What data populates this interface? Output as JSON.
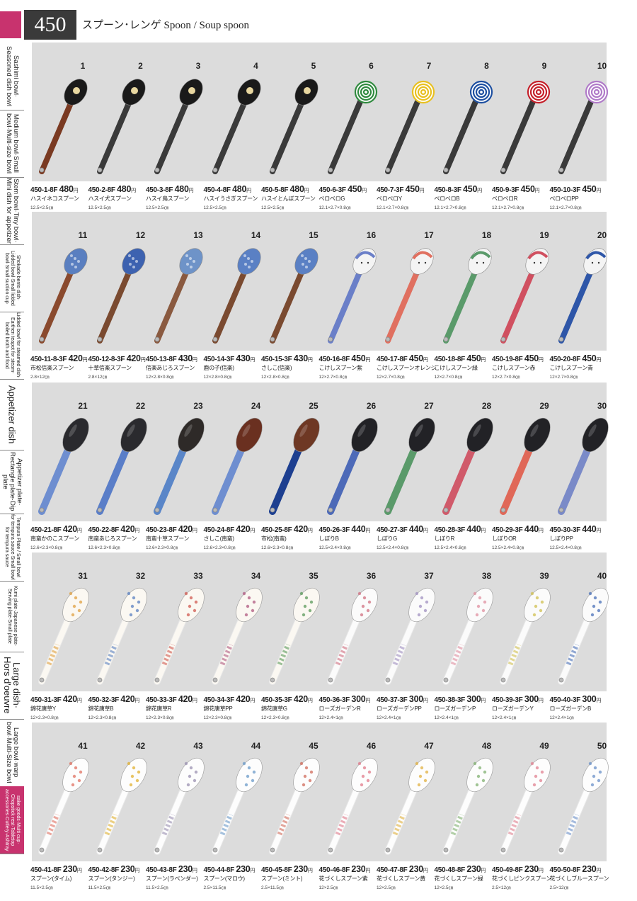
{
  "header": {
    "page_number": "450",
    "title": "スプーン･レンゲ Spoon / Soup spoon"
  },
  "sidebar": [
    {
      "label": "Sashimi bowl·\nSeasoned dish bowl",
      "size": "norm"
    },
    {
      "label": "Medium bowl·Small\nbowl·Multi-size bowl",
      "size": "norm"
    },
    {
      "label": "Stem bowl·Tiny bowl·\nMini dish for appetizer",
      "size": "norm"
    },
    {
      "label": "Shokado bento dish·\nLidded bowl·Small lidded\nbowl·Small suction cup",
      "size": "small"
    },
    {
      "label": "Lidded bowl for steamed dish·\nEarthen teapot for steam-\nboiled broth and food",
      "size": "small"
    },
    {
      "label": "Appetizer dish",
      "size": "big"
    },
    {
      "label": "Appetizer plate·\nRectangle plate·Dip plate",
      "size": "norm"
    },
    {
      "label": "Tempura Plate / Small bowl\nfor tempura sauce·Small bowl\nfor tempura sauce",
      "size": "small"
    },
    {
      "label": "Kumi plate·Japanese plate·\nServing plate·Small plate",
      "size": "small"
    },
    {
      "label": "Large dish·\nHors d'oeuvre",
      "size": "big"
    },
    {
      "label": "Large bowl·warp\nbowl·Multi-Size bowl",
      "size": "norm"
    },
    {
      "label": "sake goods·Multi cup·\nChopstick rest·Tabletop\naccessories·Cutlery·Ashtray",
      "size": "active"
    }
  ],
  "items": [
    {
      "n": "1",
      "code": "450-1-8F",
      "price": "480",
      "name": "ハスイネコスプーン",
      "size": "12.5×2.5㎝",
      "bowl": "#1a1a1a",
      "handle": "#7a3a22",
      "pattern": "cat"
    },
    {
      "n": "2",
      "code": "450-2-8F",
      "price": "480",
      "name": "ハスイ犬スプーン",
      "size": "12.5×2.5㎝",
      "bowl": "#1a1a1a",
      "handle": "#3a3a3a",
      "pattern": "dog"
    },
    {
      "n": "3",
      "code": "450-3-8F",
      "price": "480",
      "name": "ハスイ鳥スプーン",
      "size": "12.5×2.5㎝",
      "bowl": "#1a1a1a",
      "handle": "#3a3a3a",
      "pattern": "bird"
    },
    {
      "n": "4",
      "code": "450-4-8F",
      "price": "480",
      "name": "ハスイうさぎスプーン",
      "size": "12.5×2.5㎝",
      "bowl": "#1a1a1a",
      "handle": "#3a3a3a",
      "pattern": "rabbit"
    },
    {
      "n": "5",
      "code": "450-5-8F",
      "price": "480",
      "name": "ハスイとんぼスプーン",
      "size": "12.5×2.5㎝",
      "bowl": "#1a1a1a",
      "handle": "#3a3a3a",
      "pattern": "dragonfly"
    },
    {
      "n": "6",
      "code": "450-6-3F",
      "price": "450",
      "name": "ベロベロG",
      "size": "12.1×2.7×0.8㎝",
      "bowl": "#2f8a3e",
      "handle": "#3a3a3a",
      "pattern": "swirl"
    },
    {
      "n": "7",
      "code": "450-7-3F",
      "price": "450",
      "name": "ベロベロY",
      "size": "12.1×2.7×0.8㎝",
      "bowl": "#e8c020",
      "handle": "#3a3a3a",
      "pattern": "swirl"
    },
    {
      "n": "8",
      "code": "450-8-3F",
      "price": "450",
      "name": "ベロベロB",
      "size": "12.1×2.7×0.8㎝",
      "bowl": "#1d4fa0",
      "handle": "#3a3a3a",
      "pattern": "swirl"
    },
    {
      "n": "9",
      "code": "450-9-3F",
      "price": "450",
      "name": "ベロベロR",
      "size": "12.1×2.7×0.8㎝",
      "bowl": "#c4202a",
      "handle": "#3a3a3a",
      "pattern": "swirl"
    },
    {
      "n": "10",
      "code": "450-10-3F",
      "price": "450",
      "name": "ベロベロPP",
      "size": "12.1×2.7×0.8㎝",
      "bowl": "#b07ac8",
      "handle": "#3a3a3a",
      "pattern": "swirl"
    },
    {
      "n": "11",
      "code": "450-11-8-3F",
      "price": "420",
      "name": "市松信楽スプーン",
      "size": "2.8×12㎝",
      "bowl": "#5a7fc0",
      "handle": "#8a4a2e",
      "pattern": "check"
    },
    {
      "n": "12",
      "code": "450-12-8-3F",
      "price": "420",
      "name": "十草信楽スプーン",
      "size": "2.8×12㎝",
      "bowl": "#3d62b0",
      "handle": "#7a4a30",
      "pattern": "stripe"
    },
    {
      "n": "13",
      "code": "450-13-8F",
      "price": "430",
      "name": "信楽あじろスプーン",
      "size": "12×2.8×0.8㎝",
      "bowl": "#6e93c8",
      "handle": "#8a5a40",
      "pattern": "check"
    },
    {
      "n": "14",
      "code": "450-14-3F",
      "price": "430",
      "name": "鹿の子(信楽)",
      "size": "12×2.8×0.8㎝",
      "bowl": "#5a80c4",
      "handle": "#7a4a30",
      "pattern": "dots"
    },
    {
      "n": "15",
      "code": "450-15-3F",
      "price": "430",
      "name": "さしこ(信楽)",
      "size": "12×2.8×0.8㎝",
      "bowl": "#5a80c4",
      "handle": "#7a4a30",
      "pattern": "dots"
    },
    {
      "n": "16",
      "code": "450-16-8F",
      "price": "450",
      "name": "こけしスプーン紫",
      "size": "12×2.7×0.8㎝",
      "bowl": "#f4f4f4",
      "handle": "#6a7fc8",
      "pattern": "kokeshi"
    },
    {
      "n": "17",
      "code": "450-17-8F",
      "price": "450",
      "name": "こけしスプーンオレンジ",
      "size": "12×2.7×0.8㎝",
      "bowl": "#f4f4f4",
      "handle": "#e07060",
      "pattern": "kokeshi"
    },
    {
      "n": "18",
      "code": "450-18-8F",
      "price": "450",
      "name": "こけしスプーン緑",
      "size": "12×2.7×0.8㎝",
      "bowl": "#f4f4f4",
      "handle": "#5a9a6a",
      "pattern": "kokeshi"
    },
    {
      "n": "19",
      "code": "450-19-8F",
      "price": "450",
      "name": "こけしスプーン赤",
      "size": "12×2.7×0.8㎝",
      "bowl": "#f4f4f4",
      "handle": "#d05060",
      "pattern": "kokeshi"
    },
    {
      "n": "20",
      "code": "450-20-8F",
      "price": "450",
      "name": "こけしスプーン青",
      "size": "12×2.7×0.8㎝",
      "bowl": "#f4f4f4",
      "handle": "#2e56a8",
      "pattern": "kokeshi"
    },
    {
      "n": "21",
      "code": "450-21-8F",
      "price": "420",
      "name": "南蛮かのこスプーン",
      "size": "12.6×2.3×0.8㎝",
      "bowl": "#2a2a2e",
      "handle": "#6e8ed0",
      "pattern": "plain"
    },
    {
      "n": "22",
      "code": "450-22-8F",
      "price": "420",
      "name": "南蛮あじろスプーン",
      "size": "12.6×2.3×0.8㎝",
      "bowl": "#2a2a2e",
      "handle": "#5a7ec8",
      "pattern": "plain"
    },
    {
      "n": "23",
      "code": "450-23-8F",
      "price": "420",
      "name": "南蛮十草スプーン",
      "size": "12.6×2.3×0.8㎝",
      "bowl": "#2e2a28",
      "handle": "#5a86c8",
      "pattern": "plain"
    },
    {
      "n": "24",
      "code": "450-24-8F",
      "price": "420",
      "name": "さしこ(南蛮)",
      "size": "12.6×2.3×0.8㎝",
      "bowl": "#6a3020",
      "handle": "#6e8ed0",
      "pattern": "plain"
    },
    {
      "n": "25",
      "code": "450-25-8F",
      "price": "420",
      "name": "市松(南蛮)",
      "size": "12.6×2.3×0.8㎝",
      "bowl": "#6e3824",
      "handle": "#1d3f90",
      "pattern": "plain"
    },
    {
      "n": "26",
      "code": "450-26-3F",
      "price": "440",
      "name": "しぼりB",
      "size": "12.5×2.4×0.8㎝",
      "bowl": "#222226",
      "handle": "#4d6ab8",
      "pattern": "plain"
    },
    {
      "n": "27",
      "code": "450-27-3F",
      "price": "440",
      "name": "しぼりG",
      "size": "12.5×2.4×0.8㎝",
      "bowl": "#222226",
      "handle": "#5a9a6a",
      "pattern": "plain"
    },
    {
      "n": "28",
      "code": "450-28-3F",
      "price": "440",
      "name": "しぼりR",
      "size": "12.5×2.4×0.8㎝",
      "bowl": "#222226",
      "handle": "#d05a6a",
      "pattern": "plain"
    },
    {
      "n": "29",
      "code": "450-29-3F",
      "price": "440",
      "name": "しぼりOR",
      "size": "12.5×2.4×0.8㎝",
      "bowl": "#222226",
      "handle": "#e06858",
      "pattern": "plain"
    },
    {
      "n": "30",
      "code": "450-30-3F",
      "price": "440",
      "name": "しぼりPP",
      "size": "12.5×2.4×0.8㎝",
      "bowl": "#222226",
      "handle": "#7a8ac8",
      "pattern": "plain"
    },
    {
      "n": "31",
      "code": "450-31-3F",
      "price": "420",
      "name": "錦花唐草Y",
      "size": "12×2.3×0.8㎝",
      "bowl": "#fbf8f2",
      "handle": "#fbf8f2",
      "accent": "#e0a040",
      "pattern": "floral"
    },
    {
      "n": "32",
      "code": "450-32-3F",
      "price": "420",
      "name": "錦花唐草B",
      "size": "12×2.3×0.8㎝",
      "bowl": "#fbf8f2",
      "handle": "#fbf8f2",
      "accent": "#5a80c0",
      "pattern": "floral"
    },
    {
      "n": "33",
      "code": "450-33-3F",
      "price": "420",
      "name": "錦花唐草R",
      "size": "12×2.3×0.8㎝",
      "bowl": "#fbf8f2",
      "handle": "#fbf8f2",
      "accent": "#d05a50",
      "pattern": "floral"
    },
    {
      "n": "34",
      "code": "450-34-3F",
      "price": "420",
      "name": "錦花唐草PP",
      "size": "12×2.3×0.8㎝",
      "bowl": "#fbf8f2",
      "handle": "#fbf8f2",
      "accent": "#b05a80",
      "pattern": "floral"
    },
    {
      "n": "35",
      "code": "450-35-3F",
      "price": "420",
      "name": "錦花唐草G",
      "size": "12×2.3×0.8㎝",
      "bowl": "#fbf8f2",
      "handle": "#fbf8f2",
      "accent": "#5a9a5a",
      "pattern": "floral"
    },
    {
      "n": "36",
      "code": "450-36-3F",
      "price": "300",
      "name": "ローズガーデンR",
      "size": "12×2.4×1㎝",
      "bowl": "#fbfbfb",
      "handle": "#fbfbfb",
      "accent": "#d07080",
      "pattern": "sprinkle"
    },
    {
      "n": "37",
      "code": "450-37-3F",
      "price": "300",
      "name": "ローズガーデンPP",
      "size": "12×2.4×1㎝",
      "bowl": "#fbfbfb",
      "handle": "#fbfbfb",
      "accent": "#a090c0",
      "pattern": "sprinkle"
    },
    {
      "n": "38",
      "code": "450-38-3F",
      "price": "300",
      "name": "ローズガーデンP",
      "size": "12×2.4×1㎝",
      "bowl": "#fbfbfb",
      "handle": "#fbfbfb",
      "accent": "#e090a0",
      "pattern": "sprinkle"
    },
    {
      "n": "39",
      "code": "450-39-3F",
      "price": "300",
      "name": "ローズガーデンY",
      "size": "12×2.4×1㎝",
      "bowl": "#fbfbfb",
      "handle": "#fbfbfb",
      "accent": "#d0c050",
      "pattern": "sprinkle"
    },
    {
      "n": "40",
      "code": "450-40-3F",
      "price": "300",
      "name": "ローズガーデンB",
      "size": "12×2.4×1㎝",
      "bowl": "#fbfbfb",
      "handle": "#fbfbfb",
      "accent": "#4a70b8",
      "pattern": "sprinkle"
    },
    {
      "n": "41",
      "code": "450-41-8F",
      "price": "230",
      "name": "スプーン(タイム)",
      "size": "11.5×2.5㎝",
      "bowl": "#fdfdfd",
      "handle": "#fdfdfd",
      "accent": "#e07060",
      "pattern": "flower"
    },
    {
      "n": "42",
      "code": "450-42-8F",
      "price": "230",
      "name": "スプーン(タンジー)",
      "size": "11.5×2.5㎝",
      "bowl": "#fdfdfd",
      "handle": "#fdfdfd",
      "accent": "#e0b030",
      "pattern": "flower"
    },
    {
      "n": "43",
      "code": "450-43-8F",
      "price": "230",
      "name": "スプーン(ラベンダー)",
      "size": "11.5×2.5㎝",
      "bowl": "#fdfdfd",
      "handle": "#fdfdfd",
      "accent": "#9a90b0",
      "pattern": "flower"
    },
    {
      "n": "44",
      "code": "450-44-8F",
      "price": "230",
      "name": "スプーン(マロウ)",
      "size": "2.5×11.5㎝",
      "bowl": "#fdfdfd",
      "handle": "#fdfdfd",
      "accent": "#6a9ac8",
      "pattern": "flower"
    },
    {
      "n": "45",
      "code": "450-45-8F",
      "price": "230",
      "name": "スプーン(ミント)",
      "size": "2.5×11.5㎝",
      "bowl": "#fdfdfd",
      "handle": "#fdfdfd",
      "accent": "#d06a5a",
      "pattern": "flower"
    },
    {
      "n": "46",
      "code": "450-46-8F",
      "price": "230",
      "name": "花づくしスプーン紫",
      "size": "12×2.5㎝",
      "bowl": "#fdfdfd",
      "handle": "#fdfdfd",
      "accent": "#e07a8a",
      "pattern": "band"
    },
    {
      "n": "47",
      "code": "450-47-8F",
      "price": "230",
      "name": "花づくしスプーン黄",
      "size": "12×2.5㎝",
      "bowl": "#fdfdfd",
      "handle": "#fdfdfd",
      "accent": "#e0b040",
      "pattern": "band"
    },
    {
      "n": "48",
      "code": "450-48-8F",
      "price": "230",
      "name": "花づくしスプーン緑",
      "size": "12×2.5㎝",
      "bowl": "#fdfdfd",
      "handle": "#fdfdfd",
      "accent": "#80b070",
      "pattern": "band"
    },
    {
      "n": "49",
      "code": "450-49-8F",
      "price": "230",
      "name": "花づくしピンクスプーン",
      "size": "2.5×12㎝",
      "bowl": "#fdfdfd",
      "handle": "#fdfdfd",
      "accent": "#e08090",
      "pattern": "band"
    },
    {
      "n": "50",
      "code": "450-50-8F",
      "price": "230",
      "name": "花づくしブルースプーン",
      "size": "2.5×12㎝",
      "bowl": "#fdfdfd",
      "handle": "#fdfdfd",
      "accent": "#6a90c8",
      "pattern": "band"
    }
  ]
}
